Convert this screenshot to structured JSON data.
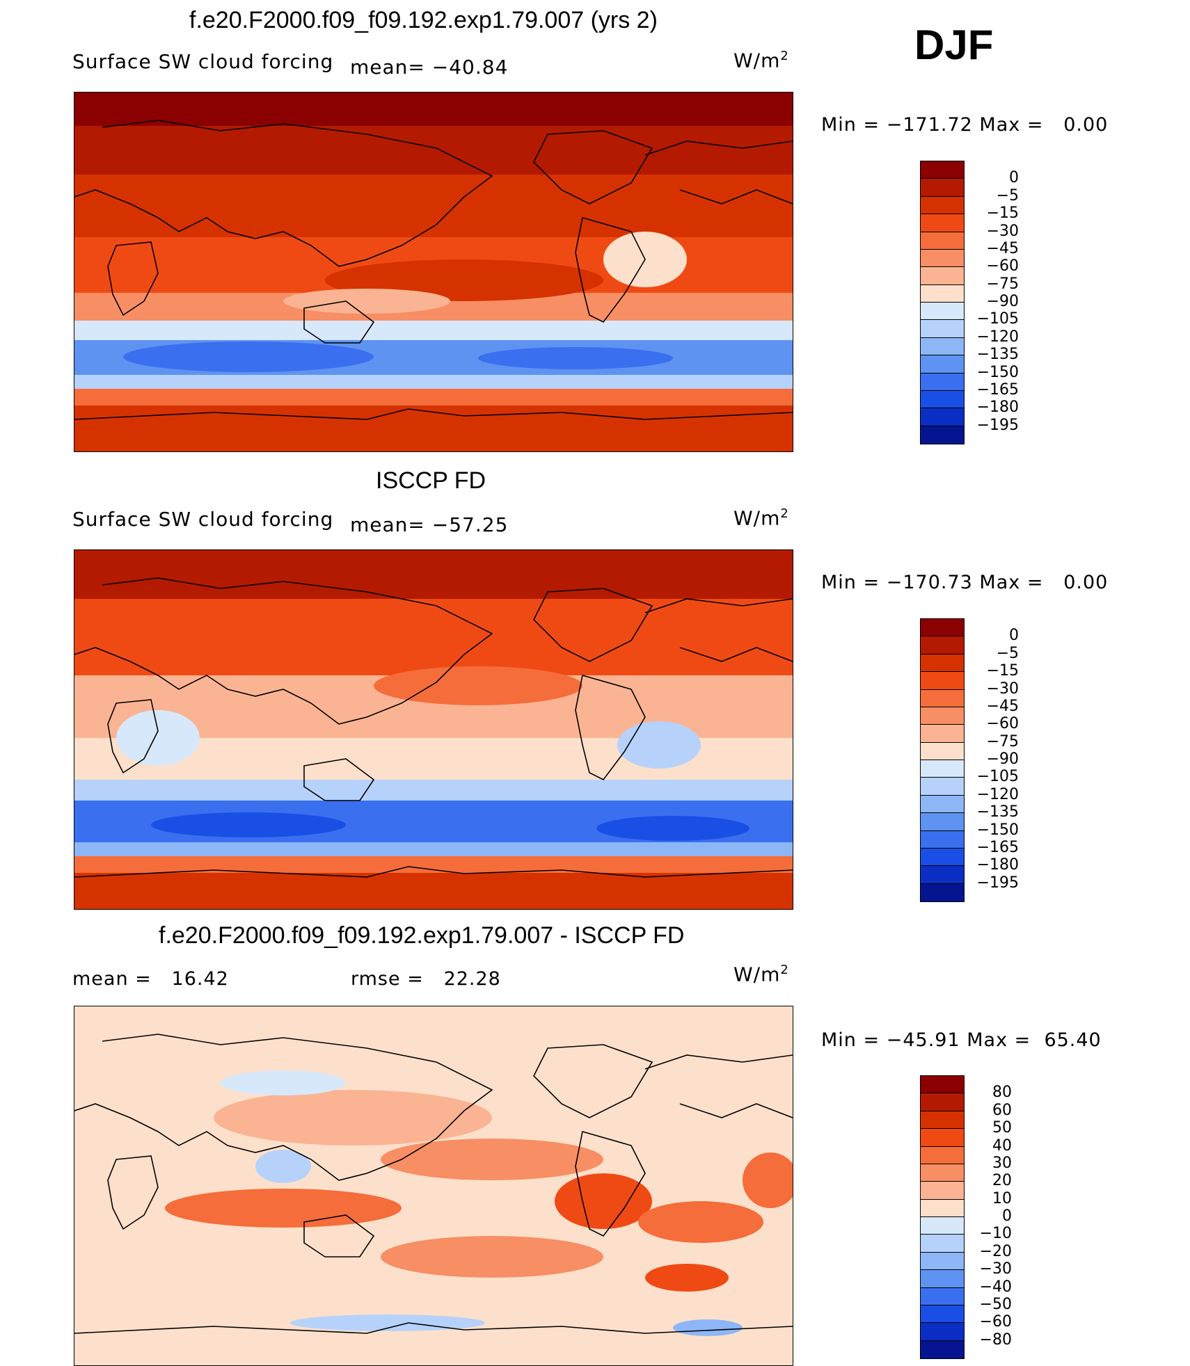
{
  "season": "DJF",
  "units_text": "W/m",
  "units_sup": "2",
  "colors": {
    "forcing_scale": [
      "#8b0000",
      "#b31a00",
      "#d63200",
      "#f04a14",
      "#f56d3a",
      "#f88e64",
      "#fbb493",
      "#fde0cb",
      "#d7e8fb",
      "#b6d2fb",
      "#8db6f7",
      "#5f93f2",
      "#3a70ef",
      "#1a4fe6",
      "#0b2fc4",
      "#04158f"
    ],
    "diff_scale": [
      "#8b0000",
      "#b31a00",
      "#d63200",
      "#f04a14",
      "#f56d3a",
      "#f88e64",
      "#fbb493",
      "#fde0cb",
      "#d7e8fb",
      "#b6d2fb",
      "#8db6f7",
      "#5f93f2",
      "#3a70ef",
      "#1a4fe6",
      "#0b2fc4",
      "#04158f"
    ]
  },
  "chart_data": [
    {
      "type": "heatmap",
      "title": "f.e20.F2000.f09_f09.192.exp1.79.007 (yrs 2)",
      "subtitle": "Surface SW cloud forcing",
      "mean_label": "mean=",
      "mean": "−40.84",
      "min_label": "Min",
      "min": "−171.72",
      "max_label": "Max",
      "max": "0.00",
      "colorbar_ticks": [
        "0",
        "−5",
        "−15",
        "−30",
        "−45",
        "−60",
        "−75",
        "−90",
        "−105",
        "−120",
        "−135",
        "−150",
        "−165",
        "−180",
        "−195"
      ]
    },
    {
      "type": "heatmap",
      "title": "ISCCP FD",
      "subtitle": "Surface SW cloud forcing",
      "mean_label": "mean=",
      "mean": "−57.25",
      "min_label": "Min",
      "min": "−170.73",
      "max_label": "Max",
      "max": "0.00",
      "colorbar_ticks": [
        "0",
        "−5",
        "−15",
        "−30",
        "−45",
        "−60",
        "−75",
        "−90",
        "−105",
        "−120",
        "−135",
        "−150",
        "−165",
        "−180",
        "−195"
      ]
    },
    {
      "type": "heatmap",
      "title": "f.e20.F2000.f09_f09.192.exp1.79.007 - ISCCP FD",
      "mean_label": "mean =",
      "mean": "16.42",
      "rmse_label": "rmse =",
      "rmse": "22.28",
      "min_label": "Min",
      "min": "−45.91",
      "max_label": "Max",
      "max": "65.40",
      "colorbar_ticks": [
        "80",
        "60",
        "50",
        "40",
        "30",
        "20",
        "10",
        "0",
        "−10",
        "−20",
        "−30",
        "−40",
        "−50",
        "−60",
        "−80"
      ]
    }
  ]
}
